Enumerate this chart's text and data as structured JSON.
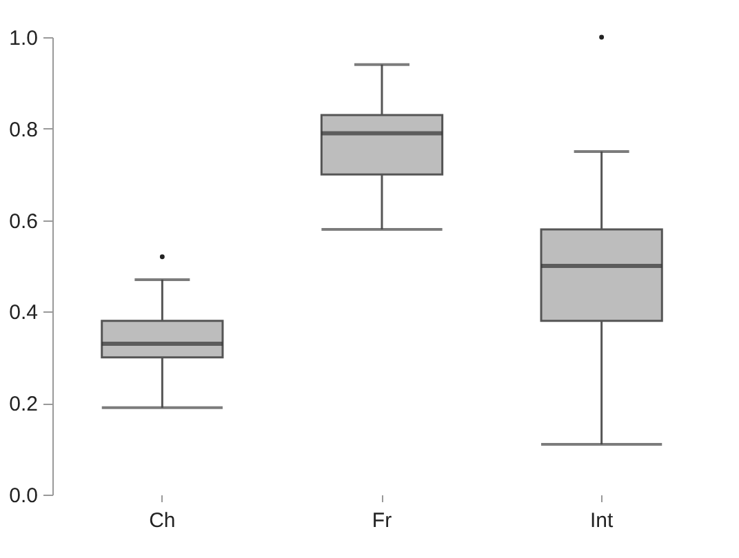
{
  "chart_data": {
    "type": "box",
    "categories": [
      "Ch",
      "Fr",
      "Int"
    ],
    "boxes": [
      {
        "low": 0.19,
        "q1": 0.3,
        "median": 0.33,
        "q3": 0.38,
        "high": 0.47,
        "outliers": [
          0.52
        ]
      },
      {
        "low": 0.58,
        "q1": 0.7,
        "median": 0.79,
        "q3": 0.83,
        "high": 0.94
      },
      {
        "low": 0.11,
        "q1": 0.38,
        "median": 0.5,
        "q3": 0.58,
        "high": 0.75,
        "outliers": [
          1.0
        ]
      }
    ],
    "color": "#bdbdbd",
    "ylim": [
      0,
      1
    ],
    "yticks": [
      {
        "value": 0,
        "label": "0.0"
      },
      {
        "value": 0.2,
        "label": "0.2"
      },
      {
        "value": 0.4,
        "label": "0.4"
      },
      {
        "value": 0.6,
        "label": "0.6"
      },
      {
        "value": 0.8,
        "label": "0.8"
      },
      {
        "value": 1,
        "label": "1.0"
      }
    ],
    "grid": false
  }
}
